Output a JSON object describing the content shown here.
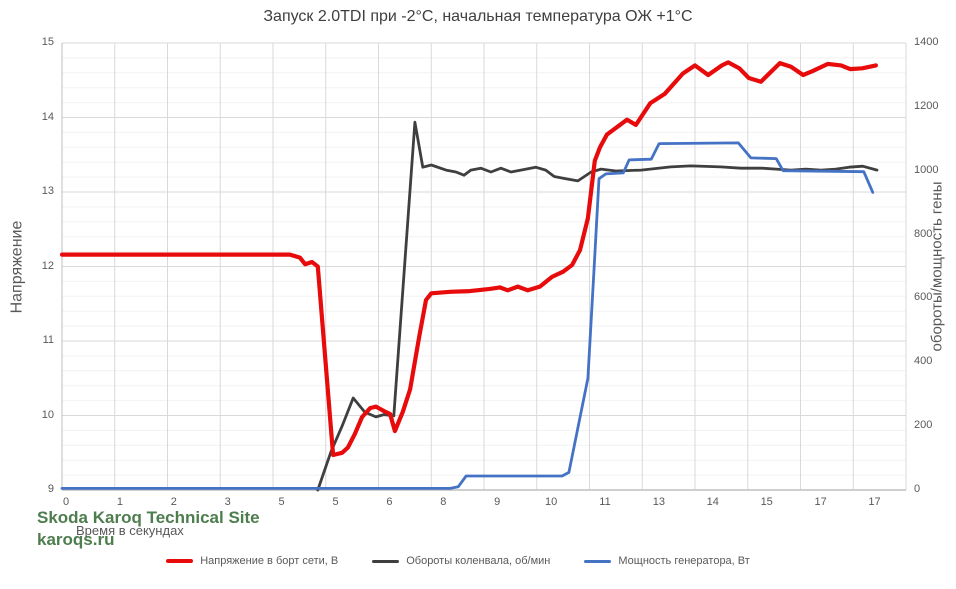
{
  "title": "Запуск 2.0TDI при -2°C, начальная температура ОЖ +1°C",
  "watermark": {
    "line1": "Skoda Karoq Technical Site",
    "line2": "karoqs.ru",
    "color": "#4e7d4e"
  },
  "colors": {
    "grid_major": "#d9d9d9",
    "grid_minor": "#f2f2f2",
    "axis_line": "#bfbfbf",
    "tick_text": "#595959",
    "title_text": "#3f3f3f"
  },
  "chart_data": {
    "type": "line",
    "title": "Запуск 2.0TDI при -2°C, начальная температура ОЖ +1°C",
    "legend_position": "bottom",
    "x_axis": {
      "title": "Время в секундах",
      "type": "category",
      "tick_labels": [
        "0",
        "1",
        "2",
        "3",
        "5",
        "5",
        "6",
        "8",
        "9",
        "10",
        "11",
        "13",
        "14",
        "15",
        "17",
        "17"
      ]
    },
    "y_left": {
      "title": "Напряжение",
      "min": 9,
      "max": 15,
      "major_step": 1,
      "minor_step": 0.2,
      "tick_labels": [
        "9",
        "10",
        "11",
        "12",
        "13",
        "14",
        "15"
      ]
    },
    "y_right": {
      "title": "обороты/мощность гены",
      "min": 0,
      "max": 1400,
      "major_step": 200,
      "tick_labels": [
        "0",
        "200",
        "400",
        "600",
        "800",
        "1000",
        "1200",
        "1400"
      ]
    },
    "grid": {
      "h_major": true,
      "h_minor": true,
      "v_major": true,
      "v_divisions": 16
    },
    "x_unit": "category index 0–16 (time in seconds, labels rounded)",
    "series": [
      {
        "id": "voltage",
        "name": "Напряжение в борт сети, В",
        "axis": "left",
        "color": "#e80b0b",
        "points": [
          [
            0,
            12.16
          ],
          [
            1,
            12.16
          ],
          [
            2,
            12.16
          ],
          [
            3,
            12.16
          ],
          [
            4.32,
            12.16
          ],
          [
            4.51,
            12.12
          ],
          [
            4.61,
            12.03
          ],
          [
            4.74,
            12.06
          ],
          [
            4.85,
            12.0
          ],
          [
            5.14,
            9.47
          ],
          [
            5.31,
            9.5
          ],
          [
            5.42,
            9.57
          ],
          [
            5.55,
            9.75
          ],
          [
            5.69,
            9.98
          ],
          [
            5.84,
            10.1
          ],
          [
            5.95,
            10.12
          ],
          [
            6.1,
            10.06
          ],
          [
            6.22,
            10.02
          ],
          [
            6.31,
            9.79
          ],
          [
            6.46,
            10.05
          ],
          [
            6.6,
            10.35
          ],
          [
            6.77,
            11.05
          ],
          [
            6.9,
            11.55
          ],
          [
            7.0,
            11.64
          ],
          [
            7.36,
            11.66
          ],
          [
            7.73,
            11.67
          ],
          [
            8.11,
            11.7
          ],
          [
            8.3,
            11.72
          ],
          [
            8.45,
            11.68
          ],
          [
            8.64,
            11.73
          ],
          [
            8.83,
            11.68
          ],
          [
            9.06,
            11.73
          ],
          [
            9.29,
            11.86
          ],
          [
            9.5,
            11.93
          ],
          [
            9.67,
            12.02
          ],
          [
            9.82,
            12.22
          ],
          [
            9.97,
            12.65
          ],
          [
            10.1,
            13.42
          ],
          [
            10.2,
            13.6
          ],
          [
            10.33,
            13.77
          ],
          [
            10.52,
            13.87
          ],
          [
            10.71,
            13.97
          ],
          [
            10.88,
            13.9
          ],
          [
            11.15,
            14.19
          ],
          [
            11.43,
            14.32
          ],
          [
            11.77,
            14.59
          ],
          [
            12.0,
            14.7
          ],
          [
            12.25,
            14.57
          ],
          [
            12.51,
            14.7
          ],
          [
            12.63,
            14.74
          ],
          [
            12.84,
            14.66
          ],
          [
            13.02,
            14.53
          ],
          [
            13.25,
            14.48
          ],
          [
            13.61,
            14.73
          ],
          [
            13.82,
            14.68
          ],
          [
            14.05,
            14.57
          ],
          [
            14.22,
            14.62
          ],
          [
            14.52,
            14.72
          ],
          [
            14.77,
            14.7
          ],
          [
            14.94,
            14.65
          ],
          [
            15.17,
            14.66
          ],
          [
            15.43,
            14.7
          ]
        ]
      },
      {
        "id": "rpm",
        "name": "Обороты коленвала, об/мин",
        "axis": "right",
        "color": "#3f3f3f",
        "points": [
          [
            4.85,
            0
          ],
          [
            5.1,
            120
          ],
          [
            5.31,
            200
          ],
          [
            5.52,
            288
          ],
          [
            5.74,
            244
          ],
          [
            5.95,
            229
          ],
          [
            6.1,
            236
          ],
          [
            6.29,
            232
          ],
          [
            6.69,
            1152
          ],
          [
            6.84,
            1011
          ],
          [
            7.0,
            1018
          ],
          [
            7.28,
            1002
          ],
          [
            7.47,
            996
          ],
          [
            7.62,
            986
          ],
          [
            7.75,
            1002
          ],
          [
            7.94,
            1008
          ],
          [
            8.13,
            996
          ],
          [
            8.32,
            1008
          ],
          [
            8.51,
            996
          ],
          [
            8.7,
            1002
          ],
          [
            8.98,
            1011
          ],
          [
            9.17,
            1002
          ],
          [
            9.33,
            982
          ],
          [
            9.55,
            975
          ],
          [
            9.78,
            968
          ],
          [
            10.03,
            996
          ],
          [
            10.22,
            1005
          ],
          [
            10.5,
            999
          ],
          [
            10.98,
            1002
          ],
          [
            11.54,
            1012
          ],
          [
            11.92,
            1015
          ],
          [
            12.49,
            1012
          ],
          [
            12.87,
            1008
          ],
          [
            13.27,
            1008
          ],
          [
            13.54,
            1005
          ],
          [
            13.82,
            1002
          ],
          [
            14.1,
            1005
          ],
          [
            14.39,
            1002
          ],
          [
            14.67,
            1005
          ],
          [
            14.92,
            1011
          ],
          [
            15.18,
            1014
          ],
          [
            15.45,
            1002
          ]
        ]
      },
      {
        "id": "power",
        "name": "Мощность генератора, Вт",
        "axis": "right",
        "color": "#4472c4",
        "points": [
          [
            0,
            5
          ],
          [
            7.36,
            5
          ],
          [
            7.51,
            10
          ],
          [
            7.66,
            44
          ],
          [
            9.48,
            44
          ],
          [
            9.61,
            55
          ],
          [
            9.97,
            350
          ],
          [
            10.09,
            700
          ],
          [
            10.18,
            975
          ],
          [
            10.31,
            990
          ],
          [
            10.64,
            993
          ],
          [
            10.75,
            1034
          ],
          [
            11.17,
            1036
          ],
          [
            11.32,
            1085
          ],
          [
            12.82,
            1087
          ],
          [
            13.06,
            1040
          ],
          [
            13.54,
            1038
          ],
          [
            13.67,
            1000
          ],
          [
            15.2,
            997
          ],
          [
            15.37,
            932
          ]
        ]
      }
    ]
  }
}
